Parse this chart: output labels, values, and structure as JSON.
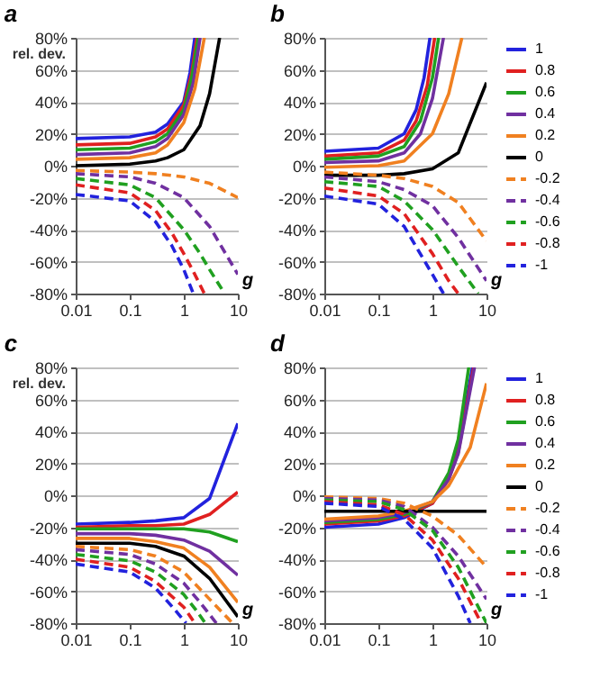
{
  "chart_data": [
    {
      "type": "line",
      "title": "a",
      "xlabel": "g",
      "ylabel": "rel. dev.",
      "log": "x",
      "grid": "y",
      "legend": false,
      "xlim": [
        0.01,
        10
      ],
      "ylim": [
        -80,
        80
      ],
      "xticks": [
        0.01,
        0.1,
        1,
        10
      ],
      "yticks": [
        {
          "value": -80,
          "label": "-80%"
        },
        {
          "value": -60,
          "label": "-60%"
        },
        {
          "value": -40,
          "label": "-40%"
        },
        {
          "value": -20,
          "label": "-20%"
        },
        {
          "value": 0,
          "label": "0%"
        },
        {
          "value": 20,
          "label": "20%"
        },
        {
          "value": 40,
          "label": "40%"
        },
        {
          "value": 60,
          "label": "60%"
        },
        {
          "value": 80,
          "label": "80%"
        }
      ],
      "series": [
        {
          "color": "#2222dd",
          "line_style": "solid",
          "x": [
            0.01,
            0.1,
            0.3,
            0.5,
            1,
            1.3,
            1.6
          ],
          "values": [
            17,
            18,
            21,
            26,
            40,
            58,
            80
          ]
        },
        {
          "color": "#e02020",
          "line_style": "solid",
          "x": [
            0.01,
            0.1,
            0.3,
            0.5,
            1,
            1.4,
            1.75
          ],
          "values": [
            13,
            14,
            18,
            23,
            38,
            58,
            80
          ]
        },
        {
          "color": "#20a020",
          "line_style": "solid",
          "x": [
            0.01,
            0.1,
            0.3,
            0.5,
            1,
            1.4,
            1.85
          ],
          "values": [
            10,
            11,
            15,
            20,
            35,
            55,
            80
          ]
        },
        {
          "color": "#7030a0",
          "line_style": "solid",
          "x": [
            0.01,
            0.1,
            0.3,
            0.5,
            1,
            1.5,
            2
          ],
          "values": [
            7,
            8,
            12,
            17,
            32,
            52,
            80
          ]
        },
        {
          "color": "#f08020",
          "line_style": "solid",
          "x": [
            0.01,
            0.1,
            0.3,
            0.5,
            1,
            1.6,
            2.4
          ],
          "values": [
            4,
            5,
            8,
            13,
            27,
            48,
            80
          ]
        },
        {
          "color": "#000000",
          "line_style": "solid",
          "x": [
            0.01,
            0.1,
            0.3,
            0.5,
            1,
            2,
            3,
            4.6
          ],
          "values": [
            0,
            1,
            3,
            5,
            10,
            25,
            45,
            80
          ]
        },
        {
          "color": "#f08020",
          "line_style": "dashed",
          "x": [
            0.01,
            0.1,
            0.3,
            1,
            3,
            10
          ],
          "values": [
            -3,
            -4,
            -5,
            -7,
            -11,
            -20
          ]
        },
        {
          "color": "#7030a0",
          "line_style": "dashed",
          "x": [
            0.01,
            0.1,
            0.3,
            1,
            3,
            10
          ],
          "values": [
            -5,
            -7,
            -11,
            -20,
            -38,
            -68
          ]
        },
        {
          "color": "#20a020",
          "line_style": "dashed",
          "x": [
            0.01,
            0.1,
            0.3,
            1,
            2,
            3,
            5.7
          ],
          "values": [
            -8,
            -12,
            -20,
            -40,
            -55,
            -65,
            -80
          ]
        },
        {
          "color": "#e02020",
          "line_style": "dashed",
          "x": [
            0.01,
            0.1,
            0.3,
            0.6,
            1,
            1.6,
            2.4
          ],
          "values": [
            -12,
            -17,
            -28,
            -42,
            -55,
            -68,
            -80
          ]
        },
        {
          "color": "#2222dd",
          "line_style": "dashed",
          "x": [
            0.01,
            0.1,
            0.3,
            0.6,
            1,
            1.5
          ],
          "values": [
            -18,
            -22,
            -35,
            -50,
            -65,
            -80
          ]
        }
      ]
    },
    {
      "type": "line",
      "title": "b",
      "xlabel": "g",
      "log": "x",
      "grid": "y",
      "legend": "right",
      "xlim": [
        0.01,
        10
      ],
      "ylim": [
        -80,
        80
      ],
      "xticks": [
        0.01,
        0.1,
        1,
        10
      ],
      "yticks": [
        {
          "value": -80,
          "label": "-80%"
        },
        {
          "value": -60,
          "label": "-60%"
        },
        {
          "value": -40,
          "label": "-40%"
        },
        {
          "value": -20,
          "label": "-20%"
        },
        {
          "value": 0,
          "label": "0%"
        },
        {
          "value": 20,
          "label": "20%"
        },
        {
          "value": 40,
          "label": "40%"
        },
        {
          "value": 60,
          "label": "60%"
        },
        {
          "value": 80,
          "label": "80%"
        }
      ],
      "series": [
        {
          "name": "1",
          "color": "#2222dd",
          "line_style": "solid",
          "x": [
            0.01,
            0.1,
            0.3,
            0.5,
            0.7,
            0.9
          ],
          "values": [
            9,
            11,
            20,
            35,
            55,
            80
          ]
        },
        {
          "name": "0.8",
          "color": "#e02020",
          "line_style": "solid",
          "x": [
            0.01,
            0.1,
            0.3,
            0.5,
            0.8,
            1.1
          ],
          "values": [
            6,
            8,
            16,
            28,
            50,
            80
          ]
        },
        {
          "name": "0.6",
          "color": "#20a020",
          "line_style": "solid",
          "x": [
            0.01,
            0.1,
            0.3,
            0.6,
            1,
            1.3
          ],
          "values": [
            4,
            6,
            12,
            28,
            55,
            80
          ]
        },
        {
          "name": "0.4",
          "color": "#7030a0",
          "line_style": "solid",
          "x": [
            0.01,
            0.1,
            0.3,
            0.6,
            1,
            1.6
          ],
          "values": [
            2,
            3,
            8,
            20,
            42,
            80
          ]
        },
        {
          "name": "0.2",
          "color": "#f08020",
          "line_style": "solid",
          "x": [
            0.01,
            0.1,
            0.3,
            1,
            2,
            3.5
          ],
          "values": [
            -1,
            0,
            3,
            20,
            45,
            80
          ]
        },
        {
          "name": "0",
          "color": "#000000",
          "line_style": "solid",
          "x": [
            0.01,
            0.1,
            0.3,
            1,
            3,
            10
          ],
          "values": [
            -6,
            -6,
            -5,
            -2,
            8,
            52
          ]
        },
        {
          "name": "-0.2",
          "color": "#f08020",
          "line_style": "dashed",
          "x": [
            0.01,
            0.1,
            0.3,
            1,
            3,
            10
          ],
          "values": [
            -4,
            -6,
            -8,
            -13,
            -23,
            -47
          ]
        },
        {
          "name": "-0.4",
          "color": "#7030a0",
          "line_style": "dashed",
          "x": [
            0.01,
            0.1,
            0.3,
            1,
            3,
            10
          ],
          "values": [
            -7,
            -10,
            -15,
            -25,
            -45,
            -72
          ]
        },
        {
          "name": "-0.6",
          "color": "#20a020",
          "line_style": "dashed",
          "x": [
            0.01,
            0.1,
            0.3,
            1,
            3,
            7
          ],
          "values": [
            -10,
            -13,
            -22,
            -40,
            -63,
            -80
          ]
        },
        {
          "name": "-0.8",
          "color": "#e02020",
          "line_style": "dashed",
          "x": [
            0.01,
            0.1,
            0.3,
            1,
            2,
            3
          ],
          "values": [
            -14,
            -19,
            -30,
            -55,
            -72,
            -80
          ]
        },
        {
          "name": "-1",
          "color": "#2222dd",
          "line_style": "dashed",
          "x": [
            0.01,
            0.1,
            0.3,
            1,
            1.6
          ],
          "values": [
            -19,
            -24,
            -38,
            -68,
            -80
          ]
        }
      ]
    },
    {
      "type": "line",
      "title": "c",
      "xlabel": "g",
      "ylabel": "rel. dev.",
      "log": "x",
      "grid": "y",
      "legend": false,
      "xlim": [
        0.01,
        10
      ],
      "ylim": [
        -80,
        80
      ],
      "xticks": [
        0.01,
        0.1,
        1,
        10
      ],
      "yticks": [
        {
          "value": -80,
          "label": "-80%"
        },
        {
          "value": -60,
          "label": "-60%"
        },
        {
          "value": -40,
          "label": "-40%"
        },
        {
          "value": -20,
          "label": "-20%"
        },
        {
          "value": 0,
          "label": "0%"
        },
        {
          "value": 20,
          "label": "20%"
        },
        {
          "value": 40,
          "label": "40%"
        },
        {
          "value": 60,
          "label": "60%"
        },
        {
          "value": 80,
          "label": "80%"
        }
      ],
      "series": [
        {
          "color": "#2222dd",
          "line_style": "solid",
          "x": [
            0.01,
            0.1,
            0.3,
            1,
            3,
            10
          ],
          "values": [
            -18,
            -17,
            -16,
            -14,
            -2,
            45
          ]
        },
        {
          "color": "#e02020",
          "line_style": "solid",
          "x": [
            0.01,
            0.1,
            0.3,
            1,
            3,
            10
          ],
          "values": [
            -20,
            -19,
            -19,
            -18,
            -12,
            2
          ]
        },
        {
          "color": "#20a020",
          "line_style": "solid",
          "x": [
            0.01,
            0.1,
            0.3,
            1,
            3,
            10
          ],
          "values": [
            -21,
            -21,
            -21,
            -21,
            -23,
            -29
          ]
        },
        {
          "color": "#7030a0",
          "line_style": "solid",
          "x": [
            0.01,
            0.1,
            0.3,
            1,
            3,
            10
          ],
          "values": [
            -24,
            -24,
            -25,
            -28,
            -35,
            -50
          ]
        },
        {
          "color": "#f08020",
          "line_style": "solid",
          "x": [
            0.01,
            0.1,
            0.3,
            1,
            3,
            10
          ],
          "values": [
            -27,
            -27,
            -29,
            -33,
            -45,
            -67
          ]
        },
        {
          "color": "#000000",
          "line_style": "solid",
          "x": [
            0.01,
            0.1,
            0.3,
            1,
            3,
            10
          ],
          "values": [
            -30,
            -30,
            -32,
            -38,
            -52,
            -76
          ]
        },
        {
          "color": "#f08020",
          "line_style": "dashed",
          "x": [
            0.01,
            0.1,
            0.3,
            1,
            3,
            8
          ],
          "values": [
            -32,
            -34,
            -38,
            -48,
            -65,
            -80
          ]
        },
        {
          "color": "#7030a0",
          "line_style": "dashed",
          "x": [
            0.01,
            0.1,
            0.3,
            1,
            2,
            4
          ],
          "values": [
            -34,
            -37,
            -43,
            -55,
            -67,
            -80
          ]
        },
        {
          "color": "#20a020",
          "line_style": "dashed",
          "x": [
            0.01,
            0.1,
            0.3,
            1,
            1.7,
            2.5
          ],
          "values": [
            -37,
            -41,
            -48,
            -62,
            -72,
            -80
          ]
        },
        {
          "color": "#e02020",
          "line_style": "dashed",
          "x": [
            0.01,
            0.1,
            0.3,
            1,
            1.6
          ],
          "values": [
            -40,
            -45,
            -54,
            -70,
            -80
          ]
        },
        {
          "color": "#2222dd",
          "line_style": "dashed",
          "x": [
            0.01,
            0.1,
            0.3,
            0.7,
            1.1
          ],
          "values": [
            -43,
            -48,
            -58,
            -72,
            -80
          ]
        }
      ]
    },
    {
      "type": "line",
      "title": "d",
      "xlabel": "g",
      "log": "x",
      "grid": "y",
      "legend": "right",
      "xlim": [
        0.01,
        10
      ],
      "ylim": [
        -80,
        80
      ],
      "xticks": [
        0.01,
        0.1,
        1,
        10
      ],
      "yticks": [
        {
          "value": -80,
          "label": "-80%"
        },
        {
          "value": -60,
          "label": "-60%"
        },
        {
          "value": -40,
          "label": "-40%"
        },
        {
          "value": -20,
          "label": "-20%"
        },
        {
          "value": 0,
          "label": "0%"
        },
        {
          "value": 20,
          "label": "20%"
        },
        {
          "value": 40,
          "label": "40%"
        },
        {
          "value": 60,
          "label": "60%"
        },
        {
          "value": 80,
          "label": "80%"
        }
      ],
      "series": [
        {
          "name": "1",
          "color": "#2222dd",
          "line_style": "solid",
          "x": [
            0.01,
            0.1,
            0.3,
            1,
            2,
            3,
            5.5
          ],
          "values": [
            -20,
            -18,
            -14,
            -5,
            12,
            30,
            80
          ]
        },
        {
          "name": "0.8",
          "color": "#e02020",
          "line_style": "solid",
          "x": [
            0.01,
            0.1,
            0.3,
            1,
            2,
            3,
            5.8
          ],
          "values": [
            -18,
            -16,
            -13,
            -5,
            10,
            27,
            80
          ]
        },
        {
          "name": "0.6",
          "color": "#20a020",
          "line_style": "solid",
          "x": [
            0.01,
            0.1,
            0.3,
            1,
            2,
            3,
            4.7
          ],
          "values": [
            -17,
            -15,
            -12,
            -4,
            14,
            35,
            80
          ]
        },
        {
          "name": "0.4",
          "color": "#7030a0",
          "line_style": "solid",
          "x": [
            0.01,
            0.1,
            0.3,
            1,
            2,
            3,
            6
          ],
          "values": [
            -16,
            -14,
            -11,
            -4,
            10,
            26,
            80
          ]
        },
        {
          "name": "0.2",
          "color": "#f08020",
          "line_style": "solid",
          "x": [
            0.01,
            0.1,
            0.3,
            1,
            2,
            5,
            10
          ],
          "values": [
            -15,
            -13,
            -10,
            -4,
            6,
            30,
            70
          ]
        },
        {
          "name": "0",
          "color": "#000000",
          "line_style": "solid",
          "x": [
            0.01,
            0.1,
            0.3,
            1,
            3,
            10
          ],
          "values": [
            -10,
            -10,
            -10,
            -10,
            -10,
            -10
          ]
        },
        {
          "name": "-0.2",
          "color": "#f08020",
          "line_style": "dashed",
          "x": [
            0.01,
            0.1,
            0.3,
            1,
            3,
            10
          ],
          "values": [
            -1,
            -2,
            -5,
            -13,
            -25,
            -45
          ]
        },
        {
          "name": "-0.4",
          "color": "#7030a0",
          "line_style": "dashed",
          "x": [
            0.01,
            0.1,
            0.3,
            1,
            3,
            10
          ],
          "values": [
            -2,
            -3,
            -7,
            -20,
            -38,
            -65
          ]
        },
        {
          "name": "-0.6",
          "color": "#20a020",
          "line_style": "dashed",
          "x": [
            0.01,
            0.1,
            0.3,
            1,
            3,
            10
          ],
          "values": [
            -3,
            -4,
            -9,
            -22,
            -45,
            -80
          ]
        },
        {
          "name": "-0.8",
          "color": "#e02020",
          "line_style": "dashed",
          "x": [
            0.01,
            0.1,
            0.3,
            1,
            3,
            8
          ],
          "values": [
            -4,
            -6,
            -12,
            -28,
            -52,
            -80
          ]
        },
        {
          "name": "-1",
          "color": "#2222dd",
          "line_style": "dashed",
          "x": [
            0.01,
            0.1,
            0.3,
            1,
            3,
            5
          ],
          "values": [
            -5,
            -7,
            -15,
            -33,
            -63,
            -80
          ]
        }
      ]
    }
  ]
}
